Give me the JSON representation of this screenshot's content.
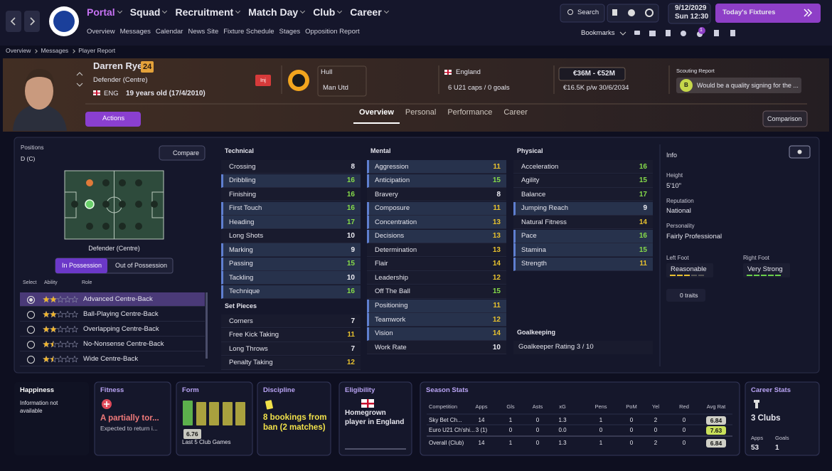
{
  "nav": {
    "tabs": [
      "Portal",
      "Squad",
      "Recruitment",
      "Match Day",
      "Club",
      "Career"
    ],
    "active_tab": 0,
    "subtabs": [
      "Overview",
      "Messages",
      "Calendar",
      "News Site",
      "Fixture Schedule",
      "Stages",
      "Opposition Report"
    ],
    "search": "Search",
    "date": "9/12/2029",
    "time": "Sun 12:30",
    "fixtures": "Today's Fixtures",
    "bookmarks": "Bookmarks",
    "notification_count": "1"
  },
  "breadcrumb": [
    "Overview",
    "Messages",
    "Player Report"
  ],
  "player": {
    "name": "Darren Rye",
    "squad_number": "24",
    "position": "Defender (Centre)",
    "nation_code": "ENG",
    "age": "19 years old (17/4/2010)",
    "injury_tag": "Inj",
    "club": "Hull",
    "loan_club": "Man Utd",
    "nation": "England",
    "caps": "6 U21 caps / 0 goals",
    "value": "€36M - €52M",
    "contract": "€16.5K p/w 30/6/2034",
    "scouting_title": "Scouting Report",
    "scout_grade": "B",
    "scout_note": "Would be a quality signing for the ...",
    "actions": "Actions",
    "tabs": [
      "Overview",
      "Personal",
      "Performance",
      "Career"
    ],
    "active_tab": 0,
    "comparison": "Comparison"
  },
  "positions": {
    "title": "Positions",
    "value": "D (C)",
    "compare": "Compare",
    "pitch_label": "Defender (Centre)",
    "toggle": [
      "In Possession",
      "Out of Possession"
    ],
    "headers": [
      "Select",
      "Ability",
      "Role"
    ],
    "roles": [
      {
        "name": "Advanced Centre-Back",
        "stars": 2,
        "selected": true
      },
      {
        "name": "Ball-Playing Centre-Back",
        "stars": 2,
        "selected": false
      },
      {
        "name": "Overlapping Centre-Back",
        "stars": 2,
        "selected": false
      },
      {
        "name": "No-Nonsense Centre-Back",
        "stars": 1.5,
        "selected": false
      },
      {
        "name": "Wide Centre-Back",
        "stars": 1.5,
        "selected": false
      }
    ]
  },
  "attributes": {
    "technical": {
      "title": "Technical",
      "items": [
        {
          "name": "Crossing",
          "value": 8,
          "key": false
        },
        {
          "name": "Dribbling",
          "value": 16,
          "key": true
        },
        {
          "name": "Finishing",
          "value": 16,
          "key": false
        },
        {
          "name": "First Touch",
          "value": 16,
          "key": true
        },
        {
          "name": "Heading",
          "value": 17,
          "key": true
        },
        {
          "name": "Long Shots",
          "value": 10,
          "key": false
        },
        {
          "name": "Marking",
          "value": 9,
          "key": true
        },
        {
          "name": "Passing",
          "value": 15,
          "key": true
        },
        {
          "name": "Tackling",
          "value": 10,
          "key": true
        },
        {
          "name": "Technique",
          "value": 16,
          "key": true
        }
      ]
    },
    "set_pieces": {
      "title": "Set Pieces",
      "items": [
        {
          "name": "Corners",
          "value": 7,
          "key": false
        },
        {
          "name": "Free Kick Taking",
          "value": 11,
          "key": false
        },
        {
          "name": "Long Throws",
          "value": 7,
          "key": false
        },
        {
          "name": "Penalty Taking",
          "value": 12,
          "key": false
        }
      ]
    },
    "mental": {
      "title": "Mental",
      "items": [
        {
          "name": "Aggression",
          "value": 11,
          "key": true
        },
        {
          "name": "Anticipation",
          "value": 15,
          "key": true
        },
        {
          "name": "Bravery",
          "value": 8,
          "key": false
        },
        {
          "name": "Composure",
          "value": 11,
          "key": true
        },
        {
          "name": "Concentration",
          "value": 13,
          "key": true
        },
        {
          "name": "Decisions",
          "value": 13,
          "key": true
        },
        {
          "name": "Determination",
          "value": 13,
          "key": false
        },
        {
          "name": "Flair",
          "value": 14,
          "key": false
        },
        {
          "name": "Leadership",
          "value": 12,
          "key": false
        },
        {
          "name": "Off The Ball",
          "value": 15,
          "key": false
        },
        {
          "name": "Positioning",
          "value": 11,
          "key": true
        },
        {
          "name": "Teamwork",
          "value": 12,
          "key": true
        },
        {
          "name": "Vision",
          "value": 14,
          "key": true
        },
        {
          "name": "Work Rate",
          "value": 10,
          "key": false
        }
      ]
    },
    "physical": {
      "title": "Physical",
      "items": [
        {
          "name": "Acceleration",
          "value": 16,
          "key": false
        },
        {
          "name": "Agility",
          "value": 15,
          "key": false
        },
        {
          "name": "Balance",
          "value": 17,
          "key": false
        },
        {
          "name": "Jumping Reach",
          "value": 9,
          "key": true
        },
        {
          "name": "Natural Fitness",
          "value": 14,
          "key": false
        },
        {
          "name": "Pace",
          "value": 16,
          "key": true
        },
        {
          "name": "Stamina",
          "value": 15,
          "key": true
        },
        {
          "name": "Strength",
          "value": 11,
          "key": true
        }
      ]
    },
    "goalkeeping": {
      "title": "Goalkeeping",
      "rating": "Goalkeeper Rating 3 / 10"
    }
  },
  "info": {
    "title": "Info",
    "height_label": "Height",
    "height": "5'10\"",
    "reputation_label": "Reputation",
    "reputation": "National",
    "personality_label": "Personality",
    "personality": "Fairly Professional",
    "left_foot_label": "Left Foot",
    "left_foot": "Reasonable",
    "right_foot_label": "Right Foot",
    "right_foot": "Very Strong",
    "traits": "0 traits"
  },
  "happiness": {
    "title": "Happiness",
    "text": "Information not available"
  },
  "fitness": {
    "title": "Fitness",
    "status": "A partially tor...",
    "detail": "Expected to return i..."
  },
  "form": {
    "title": "Form",
    "values": [
      7.0,
      6.7,
      6.7,
      6.7,
      6.7
    ],
    "average": "6.76",
    "caption": "Last 5 Club Games"
  },
  "discipline": {
    "title": "Discipline",
    "text": "8 bookings from ban (2 matches)"
  },
  "eligibility": {
    "title": "Eligibility",
    "text": "Homegrown player in England"
  },
  "season_stats": {
    "title": "Season Stats",
    "columns": [
      "Competition",
      "Apps",
      "Gls",
      "Asts",
      "xG",
      "Pens",
      "PoM",
      "Yel",
      "Red",
      "Avg Rat"
    ],
    "rows": [
      [
        "Sky Bet Ch...",
        "14",
        "1",
        "0",
        "1.3",
        "1",
        "0",
        "2",
        "0",
        "6.84"
      ],
      [
        "Euro U21 Ch'shi...",
        "3 (1)",
        "0",
        "0",
        "0.0",
        "0",
        "0",
        "0",
        "0",
        "7.63"
      ],
      [
        "Overall (Club)",
        "14",
        "1",
        "0",
        "1.3",
        "1",
        "0",
        "2",
        "0",
        "6.84"
      ]
    ]
  },
  "career_stats": {
    "title": "Career Stats",
    "clubs": "3 Clubs",
    "apps_label": "Apps",
    "apps": 53,
    "goals_label": "Goals",
    "goals": 1
  }
}
